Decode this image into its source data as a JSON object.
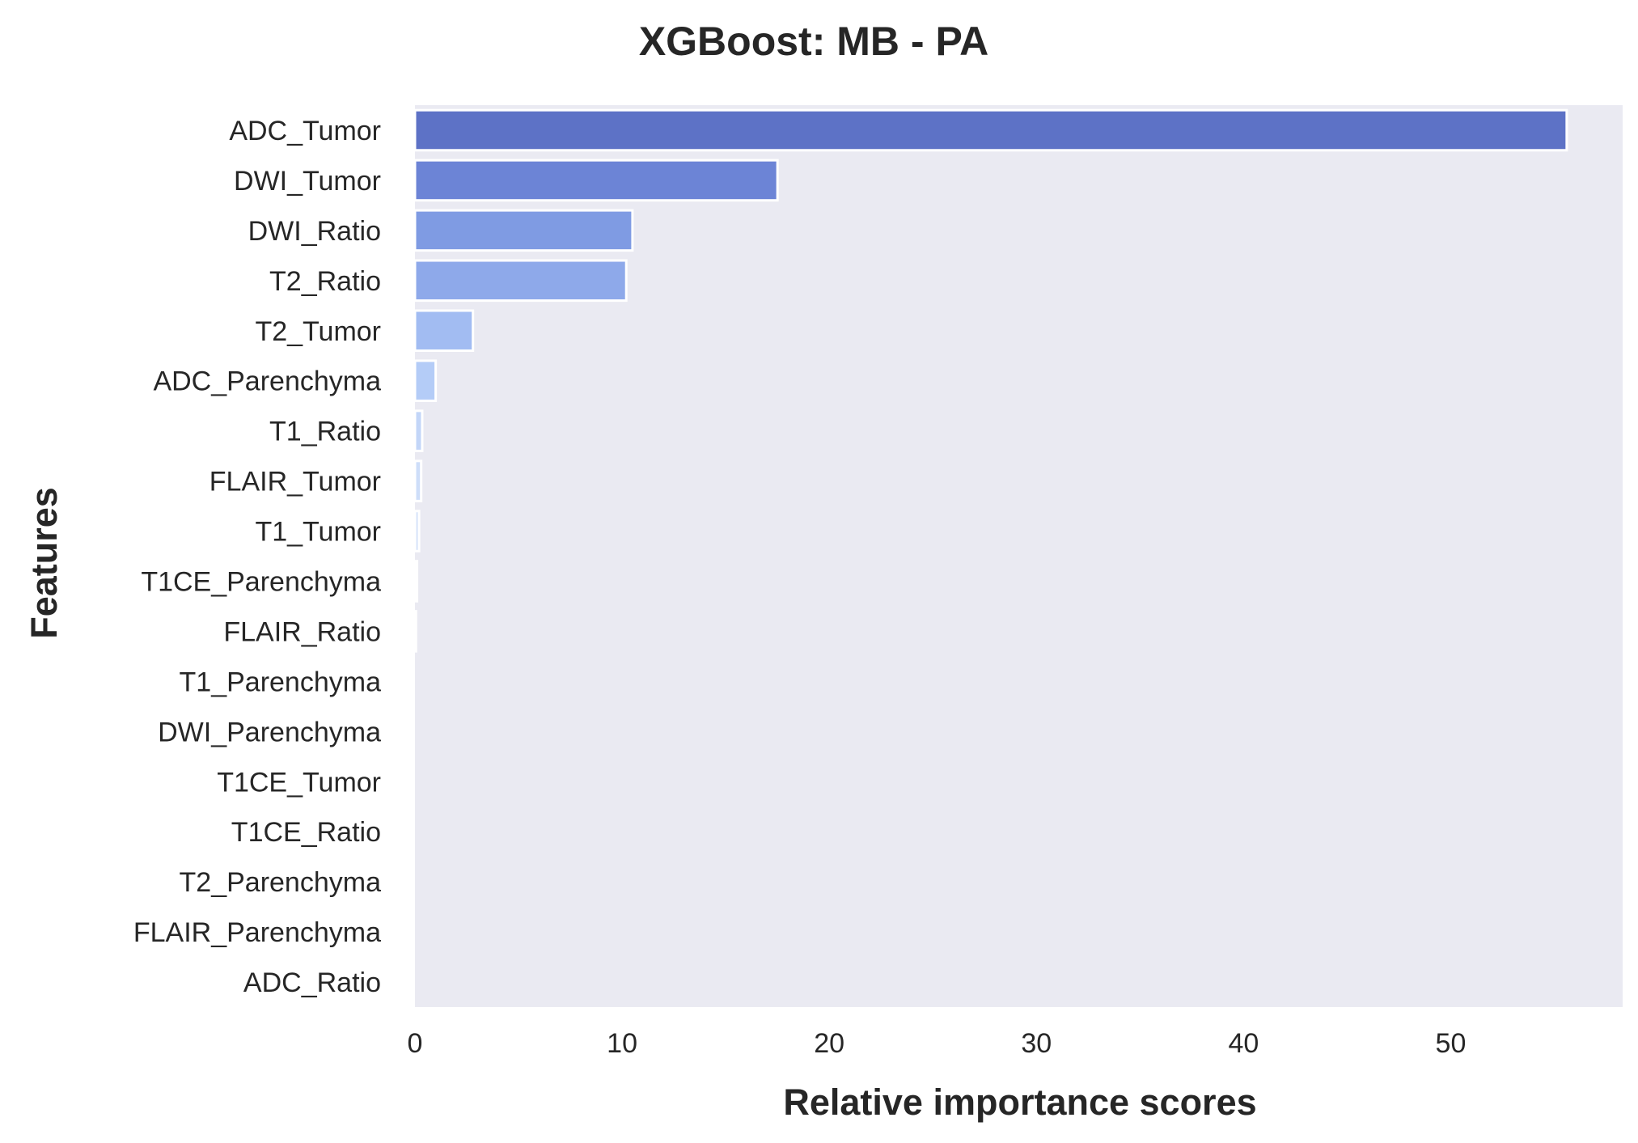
{
  "chart_data": {
    "type": "bar",
    "orientation": "horizontal",
    "title": "XGBoost: MB - PA",
    "xlabel": "Relative importance scores",
    "ylabel": "Features",
    "xlim": [
      0,
      58.3
    ],
    "xticks": [
      0,
      10,
      20,
      30,
      40,
      50
    ],
    "grid": false,
    "background": "#eaeaf2",
    "categories": [
      "ADC_Tumor",
      "DWI_Tumor",
      "DWI_Ratio",
      "T2_Ratio",
      "T2_Tumor",
      "ADC_Parenchyma",
      "T1_Ratio",
      "FLAIR_Tumor",
      "T1_Tumor",
      "T1CE_Parenchyma",
      "FLAIR_Ratio",
      "T1_Parenchyma",
      "DWI_Parenchyma",
      "T1CE_Tumor",
      "T1CE_Ratio",
      "T2_Parenchyma",
      "FLAIR_Parenchyma",
      "ADC_Ratio"
    ],
    "values": [
      55.6,
      17.5,
      10.5,
      10.2,
      2.8,
      1.0,
      0.35,
      0.3,
      0.2,
      0.1,
      0.05,
      0,
      0,
      0,
      0,
      0,
      0,
      0
    ],
    "colors": [
      "#5d72c6",
      "#6c84d6",
      "#7f9be3",
      "#8ea9ea",
      "#a2bcf2",
      "#b4ccf7",
      "#c3d6f8",
      "#cedef9",
      "#d8e4fa",
      "#e0eafb",
      "#e7eefb",
      "#ebf1fc",
      "#eef3fc",
      "#f0f4fc",
      "#f2f6fd",
      "#f4f7fd",
      "#f6f9fd",
      "#f8fafe"
    ]
  }
}
